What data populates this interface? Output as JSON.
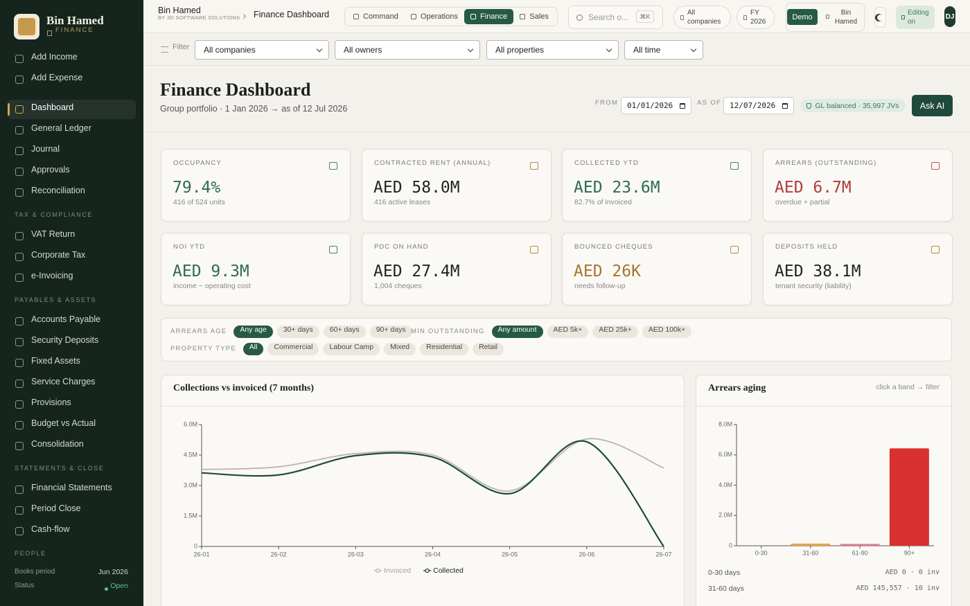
{
  "sidebar": {
    "brand": "Bin Hamed",
    "brand_sub": "FINANCE",
    "groups": [
      {
        "items": [
          {
            "label": "Add Income"
          },
          {
            "label": "Add Expense"
          }
        ]
      },
      {
        "items": [
          {
            "label": "Dashboard",
            "active": true
          },
          {
            "label": "General Ledger"
          },
          {
            "label": "Journal"
          },
          {
            "label": "Approvals"
          },
          {
            "label": "Reconciliation"
          }
        ]
      },
      {
        "title": "TAX & COMPLIANCE",
        "items": [
          {
            "label": "VAT Return"
          },
          {
            "label": "Corporate Tax"
          },
          {
            "label": "e-Invoicing"
          }
        ]
      },
      {
        "title": "PAYABLES & ASSETS",
        "items": [
          {
            "label": "Accounts Payable"
          },
          {
            "label": "Security Deposits"
          },
          {
            "label": "Fixed Assets"
          },
          {
            "label": "Service Charges"
          },
          {
            "label": "Provisions"
          },
          {
            "label": "Budget vs Actual"
          },
          {
            "label": "Consolidation"
          }
        ]
      },
      {
        "title": "STATEMENTS & CLOSE",
        "items": [
          {
            "label": "Financial Statements"
          },
          {
            "label": "Period Close"
          },
          {
            "label": "Cash-flow"
          }
        ]
      },
      {
        "title": "PEOPLE",
        "items": []
      }
    ],
    "footer": [
      {
        "label": "Books period",
        "value": "Jun 2026"
      },
      {
        "label": "Status",
        "value": "Open"
      }
    ]
  },
  "topbar": {
    "org": "Bin Hamed",
    "org_sub": "BY 3D SOFTWARE SOLUTIONS",
    "page": "Finance Dashboard",
    "tabs": [
      {
        "label": "Command"
      },
      {
        "label": "Operations"
      },
      {
        "label": "Finance",
        "active": true
      },
      {
        "label": "Sales"
      }
    ],
    "search": "Search o...",
    "shortcut": "⌘K",
    "company": "All companies",
    "year": "FY 2026",
    "mode": "Demo",
    "user": "Bin Hamed",
    "editing": "Editing on",
    "avatar": "DJ"
  },
  "filters": {
    "label": "Filter",
    "selects": [
      "All companies",
      "All owners",
      "All properties",
      "All time"
    ]
  },
  "header": {
    "title": "Finance Dashboard",
    "subtitle": "Group portfolio · 1 Jan 2026 → as of 12 Jul 2026",
    "from_label": "FROM",
    "from": "01/01/2026",
    "asof_label": "AS OF",
    "asof": "12/07/2026",
    "status": "GL balanced · 35,997 JVs",
    "action": "Ask AI"
  },
  "kpis": [
    {
      "label": "OCCUPANCY",
      "value": "79.4%",
      "note": "416 of 524 units",
      "color": "#2f6b52"
    },
    {
      "label": "CONTRACTED RENT (ANNUAL)",
      "value": "AED 58.0M",
      "note": "416 active leases",
      "color": "#23241f"
    },
    {
      "label": "COLLECTED YTD",
      "value": "AED 23.6M",
      "note": "82.7% of invoiced",
      "color": "#2f6b52"
    },
    {
      "label": "ARREARS (OUTSTANDING)",
      "value": "AED 6.7M",
      "note": "overdue + partial",
      "color": "#b23b3b"
    },
    {
      "label": "NOI YTD",
      "value": "AED 9.3M",
      "note": "income − operating cost",
      "color": "#2f6b52"
    },
    {
      "label": "PDC ON HAND",
      "value": "AED 27.4M",
      "note": "1,004 cheques",
      "color": "#23241f"
    },
    {
      "label": "BOUNCED CHEQUES",
      "value": "AED 26K",
      "note": "needs follow-up",
      "color": "#a8752b"
    },
    {
      "label": "DEPOSITS HELD",
      "value": "AED 38.1M",
      "note": "tenant security (liability)",
      "color": "#23241f"
    }
  ],
  "chips": [
    {
      "label": "ARREARS AGE",
      "options": [
        {
          "label": "Any age",
          "active": true
        },
        {
          "label": "30+ days"
        },
        {
          "label": "60+ days"
        },
        {
          "label": "90+ days"
        }
      ]
    },
    {
      "label": "MIN OUTSTANDING",
      "options": [
        {
          "label": "Any amount",
          "active": true
        },
        {
          "label": "AED 5k+"
        },
        {
          "label": "AED 25k+"
        },
        {
          "label": "AED 100k+"
        }
      ]
    },
    {
      "label": "PROPERTY TYPE",
      "options": [
        {
          "label": "All",
          "active": true
        },
        {
          "label": "Commercial"
        },
        {
          "label": "Labour Camp"
        },
        {
          "label": "Mixed"
        },
        {
          "label": "Residential"
        },
        {
          "label": "Retail"
        }
      ]
    }
  ],
  "chart_data": [
    {
      "type": "line",
      "title": "Collections vs invoiced (7 months)",
      "categories": [
        "26-01",
        "26-02",
        "26-03",
        "26-04",
        "26-05",
        "26-06",
        "26-07"
      ],
      "series": [
        {
          "name": "Invoiced",
          "color": "#bdb5a8",
          "values": [
            3790000,
            3920000,
            4570000,
            4500000,
            2730000,
            5290000,
            3860000
          ]
        },
        {
          "name": "Collected",
          "color": "#1f4a3b",
          "values": [
            3620000,
            3520000,
            4470000,
            4400000,
            2600000,
            5150000,
            0
          ]
        }
      ],
      "ylim": [
        0,
        6000000
      ],
      "yticks": [
        0,
        {
          "value": 1500000,
          "label": "1.5M"
        },
        {
          "value": 3000000,
          "label": "3.0M"
        },
        {
          "value": 4500000,
          "label": "4.5M"
        },
        {
          "value": 6000000,
          "label": "6.0M"
        }
      ]
    },
    {
      "type": "bar",
      "title": "Arrears aging",
      "subtitle": "click a band → filter",
      "categories": [
        "0-30",
        "31-60",
        "61-90",
        "90+"
      ],
      "values": [
        0,
        145557,
        120000,
        6430000
      ],
      "colors": [
        "#3f8a66",
        "#e9a24c",
        "#e27b8c",
        "#d93030"
      ],
      "ylim": [
        0,
        8000000
      ],
      "yticks": [
        0,
        {
          "value": 2000000,
          "label": "2.0M"
        },
        {
          "value": 4000000,
          "label": "4.0M"
        },
        {
          "value": 6000000,
          "label": "6.0M"
        },
        {
          "value": 8000000,
          "label": "8.0M"
        }
      ],
      "table": [
        {
          "label": "0-30 days",
          "value": "AED 0 · 0 inv"
        },
        {
          "label": "31-60 days",
          "value": "AED 145,557 · 10 inv"
        }
      ]
    }
  ]
}
